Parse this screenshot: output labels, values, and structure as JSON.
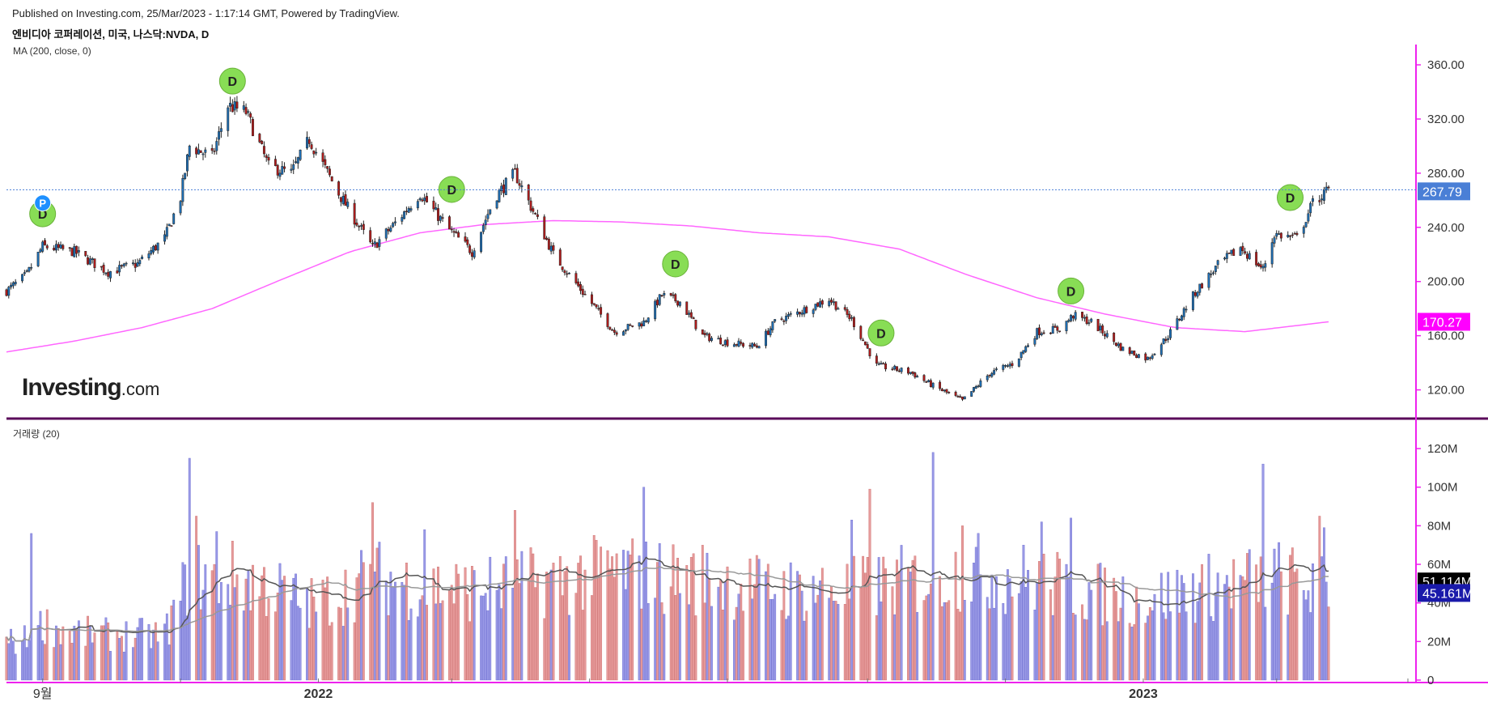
{
  "header": {
    "published": "Published on Investing.com, 25/Mar/2023 - 1:17:14 GMT, Powered by TradingView.",
    "symbol": "엔비디아 코퍼레이션, 미국, 나스닥:NVDA, D"
  },
  "indicators": {
    "price_label": "MA (200, close, 0)",
    "volume_label": "거래량 (20)"
  },
  "logo": {
    "main": "Investing",
    "suffix": ".com"
  },
  "colors": {
    "up_candle": "#1e6fb5",
    "down_candle": "#b01c1c",
    "ma_line": "#ff66ff",
    "axis_line": "#ee22ee",
    "current_price_tag": "#4a7fd6",
    "ma_tag": "#ff00ff",
    "vol_up": "#9999e6",
    "vol_down": "#e69a9a",
    "dividend_marker": "#88dd55",
    "split_marker": "#1e90ff"
  },
  "chart_data": [
    {
      "type": "candlestick",
      "title": "엔비디아 코퍼레이션, 미국, 나스닥:NVDA, D",
      "ylim": [
        100,
        375
      ],
      "y_ticks": [
        120,
        160,
        200,
        240,
        280,
        320,
        360
      ],
      "y_tick_labels": [
        "120.00",
        "160.00",
        "200.00",
        "240.00",
        "280.00",
        "320.00",
        "360.00"
      ],
      "x_labels": [
        "9월",
        "2022",
        "2023"
      ],
      "current_price": {
        "value": 267.79,
        "label": "267.79"
      },
      "ma_value": {
        "value": 170.27,
        "label": "170.27"
      },
      "price_path": [
        [
          "2021-08-16",
          193
        ],
        [
          "2021-08-25",
          205
        ],
        [
          "2021-09-01",
          226
        ],
        [
          "2021-09-15",
          222
        ],
        [
          "2021-09-30",
          207
        ],
        [
          "2021-10-13",
          213
        ],
        [
          "2021-10-25",
          232
        ],
        [
          "2021-11-01",
          262
        ],
        [
          "2021-11-05",
          300
        ],
        [
          "2021-11-15",
          292
        ],
        [
          "2021-11-22",
          330
        ],
        [
          "2021-11-30",
          325
        ],
        [
          "2021-12-10",
          285
        ],
        [
          "2021-12-20",
          280
        ],
        [
          "2021-12-28",
          305
        ],
        [
          "2022-01-10",
          265
        ],
        [
          "2022-01-25",
          225
        ],
        [
          "2022-02-05",
          245
        ],
        [
          "2022-02-15",
          265
        ],
        [
          "2022-02-28",
          238
        ],
        [
          "2022-03-10",
          222
        ],
        [
          "2022-03-20",
          262
        ],
        [
          "2022-03-29",
          280
        ],
        [
          "2022-04-08",
          245
        ],
        [
          "2022-04-15",
          220
        ],
        [
          "2022-04-29",
          190
        ],
        [
          "2022-05-12",
          163
        ],
        [
          "2022-05-25",
          170
        ],
        [
          "2022-06-02",
          190
        ],
        [
          "2022-06-10",
          185
        ],
        [
          "2022-06-20",
          160
        ],
        [
          "2022-07-01",
          155
        ],
        [
          "2022-07-14",
          152
        ],
        [
          "2022-07-22",
          170
        ],
        [
          "2022-08-05",
          180
        ],
        [
          "2022-08-15",
          187
        ],
        [
          "2022-08-25",
          172
        ],
        [
          "2022-09-05",
          138
        ],
        [
          "2022-09-20",
          133
        ],
        [
          "2022-09-30",
          123
        ],
        [
          "2022-10-13",
          112
        ],
        [
          "2022-10-25",
          132
        ],
        [
          "2022-11-05",
          140
        ],
        [
          "2022-11-15",
          163
        ],
        [
          "2022-11-25",
          165
        ],
        [
          "2022-12-01",
          175
        ],
        [
          "2022-12-09",
          170
        ],
        [
          "2022-12-16",
          160
        ],
        [
          "2022-12-23",
          150
        ],
        [
          "2023-01-03",
          143
        ],
        [
          "2023-01-12",
          160
        ],
        [
          "2023-01-24",
          192
        ],
        [
          "2023-02-03",
          212
        ],
        [
          "2023-02-13",
          225
        ],
        [
          "2023-02-23",
          209
        ],
        [
          "2023-02-28",
          235
        ],
        [
          "2023-03-10",
          232
        ],
        [
          "2023-03-17",
          258
        ],
        [
          "2023-03-24",
          267.79
        ]
      ],
      "ma200_path": [
        [
          "2021-08-16",
          148
        ],
        [
          "2021-09-15",
          156
        ],
        [
          "2021-10-15",
          166
        ],
        [
          "2021-11-15",
          180
        ],
        [
          "2021-12-15",
          201
        ],
        [
          "2022-01-15",
          222
        ],
        [
          "2022-02-15",
          236
        ],
        [
          "2022-03-15",
          242
        ],
        [
          "2022-04-15",
          245
        ],
        [
          "2022-05-15",
          244
        ],
        [
          "2022-06-15",
          241
        ],
        [
          "2022-07-15",
          236
        ],
        [
          "2022-08-15",
          233
        ],
        [
          "2022-09-15",
          224
        ],
        [
          "2022-10-15",
          205
        ],
        [
          "2022-11-15",
          188
        ],
        [
          "2022-12-15",
          176
        ],
        [
          "2023-01-15",
          166
        ],
        [
          "2023-02-15",
          163
        ],
        [
          "2023-03-24",
          170.27
        ]
      ],
      "events": [
        {
          "date": "2021-09-01",
          "price": 250,
          "label": "D"
        },
        {
          "date": "2021-09-01",
          "price": 258,
          "label": "P"
        },
        {
          "date": "2021-11-24",
          "price": 348,
          "label": "D"
        },
        {
          "date": "2022-03-01",
          "price": 268,
          "label": "D"
        },
        {
          "date": "2022-06-08",
          "price": 213,
          "label": "D"
        },
        {
          "date": "2022-09-07",
          "price": 162,
          "label": "D"
        },
        {
          "date": "2022-11-30",
          "price": 193,
          "label": "D"
        },
        {
          "date": "2023-03-07",
          "price": 262,
          "label": "D"
        }
      ]
    },
    {
      "type": "bar",
      "title": "거래량 (20)",
      "ylim": [
        0,
        128
      ],
      "y_ticks": [
        0,
        20,
        40,
        60,
        80,
        100,
        120
      ],
      "y_tick_labels": [
        "0",
        "20M",
        "40M",
        "60M",
        "80M",
        "100M",
        "120M"
      ],
      "current_values": [
        {
          "value": 51.114,
          "label": "51.114M"
        },
        {
          "value": 45.161,
          "label": "45.161M"
        }
      ],
      "volume_profile": [
        [
          "2021-08-16",
          20
        ],
        [
          "2021-08-27",
          22
        ],
        [
          "2021-09-01",
          30
        ],
        [
          "2021-09-15",
          25
        ],
        [
          "2021-10-01",
          24
        ],
        [
          "2021-10-25",
          24
        ],
        [
          "2021-11-05",
          55
        ],
        [
          "2021-11-22",
          55
        ],
        [
          "2021-12-10",
          50
        ],
        [
          "2021-12-28",
          40
        ],
        [
          "2022-01-10",
          45
        ],
        [
          "2022-01-25",
          55
        ],
        [
          "2022-02-15",
          50
        ],
        [
          "2022-03-10",
          48
        ],
        [
          "2022-04-08",
          52
        ],
        [
          "2022-04-29",
          55
        ],
        [
          "2022-05-12",
          58
        ],
        [
          "2022-06-02",
          55
        ],
        [
          "2022-06-20",
          54
        ],
        [
          "2022-07-22",
          48
        ],
        [
          "2022-08-25",
          48
        ],
        [
          "2022-09-05",
          50
        ],
        [
          "2022-09-30",
          55
        ],
        [
          "2022-10-13",
          58
        ],
        [
          "2022-11-05",
          55
        ],
        [
          "2022-11-25",
          50
        ],
        [
          "2022-12-16",
          45
        ],
        [
          "2023-01-03",
          43
        ],
        [
          "2023-01-24",
          48
        ],
        [
          "2023-02-13",
          52
        ],
        [
          "2023-02-28",
          55
        ],
        [
          "2023-03-24",
          48
        ]
      ],
      "volume_spikes": [
        [
          "2021-08-27",
          76
        ],
        [
          "2021-11-05",
          115
        ],
        [
          "2021-11-08",
          85
        ],
        [
          "2021-11-17",
          77
        ],
        [
          "2022-01-25",
          92
        ],
        [
          "2022-02-17",
          78
        ],
        [
          "2022-03-29",
          88
        ],
        [
          "2022-05-25",
          100
        ],
        [
          "2022-08-25",
          83
        ],
        [
          "2022-09-02",
          99
        ],
        [
          "2022-09-30",
          118
        ],
        [
          "2022-10-13",
          80
        ],
        [
          "2022-11-17",
          82
        ],
        [
          "2022-11-30",
          84
        ],
        [
          "2023-02-23",
          112
        ],
        [
          "2023-03-20",
          85
        ],
        [
          "2023-03-22",
          79
        ]
      ]
    }
  ]
}
